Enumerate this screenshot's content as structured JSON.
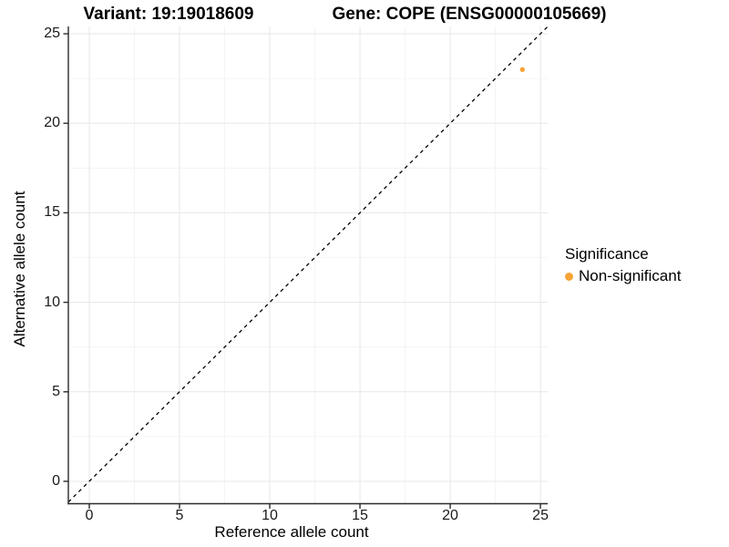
{
  "titles": {
    "variant": "Variant: 19:19018609",
    "gene": "Gene: COPE (ENSG00000105669)"
  },
  "axes": {
    "x_label": "Reference allele count",
    "y_label": "Alternative allele count"
  },
  "legend": {
    "title": "Significance",
    "items": [
      {
        "label": "Non-significant",
        "color": "#F8A435"
      }
    ]
  },
  "style": {
    "accent_orange": "#F8A435",
    "axis_line_color": "#2b2b2b",
    "tick_label_color": "#1a1a1a",
    "major_grid_color": "#e7e7e7",
    "minor_grid_color": "#f2f2f2",
    "reference_line_color": "#000000",
    "background": "#ffffff"
  },
  "chart_data": {
    "type": "scatter",
    "title": "Variant: 19:19018609    Gene: COPE (ENSG00000105669)",
    "xlabel": "Reference allele count",
    "ylabel": "Alternative allele count",
    "xlim": [
      -1.16,
      25.4
    ],
    "ylim": [
      -1.25,
      25.41
    ],
    "x_ticks": [
      0,
      5,
      10,
      15,
      20,
      25
    ],
    "y_ticks": [
      0,
      5,
      10,
      15,
      20,
      25
    ],
    "x_minor_ticks": [
      2.5,
      7.5,
      12.5,
      17.5,
      22.5
    ],
    "y_minor_ticks": [
      2.5,
      7.5,
      12.5,
      17.5,
      22.5
    ],
    "grid": true,
    "legend_position": "right",
    "series": [
      {
        "name": "Non-significant",
        "color": "#F8A435",
        "points": [
          {
            "x": 24,
            "y": 23
          }
        ]
      }
    ],
    "reference_line": {
      "kind": "identity y=x",
      "style": "dashed",
      "from": -1.16,
      "to": 25.4
    }
  }
}
